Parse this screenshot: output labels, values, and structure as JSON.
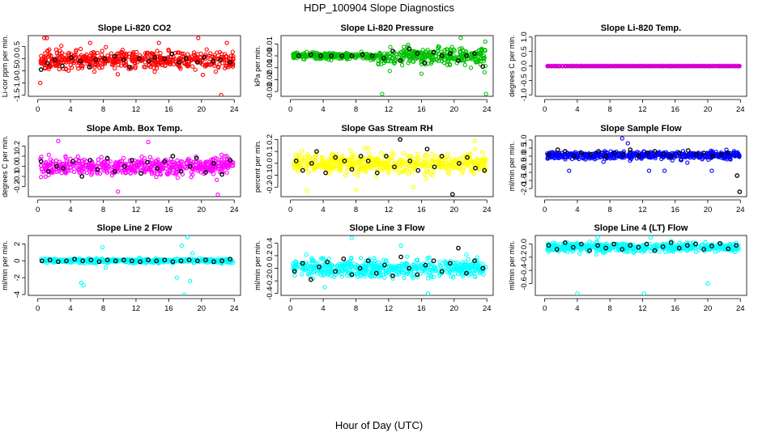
{
  "figure": {
    "title": "HDP_100904  Slope Diagnostics",
    "xlabel": "Hour of Day (UTC)"
  },
  "chart_data": [
    {
      "type": "scatter",
      "title": "Slope Li-820 CO2",
      "ylabel": "Li-cor ppm per min.",
      "color": "#ff0000",
      "xlim": [
        0,
        24
      ],
      "ylim": [
        -1.55,
        0.95
      ],
      "xticks": [
        0,
        4,
        8,
        12,
        16,
        20,
        24
      ],
      "yticks": [
        -1.5,
        -1.0,
        -0.5,
        0.0,
        0.5
      ],
      "ytick_labels": [
        "-1.5",
        "-1.0",
        "-0.5",
        "0.0",
        "0.5"
      ],
      "center": -0.05,
      "spread": 0.32,
      "black_points": [
        [
          0.4,
          -0.45
        ],
        [
          1.2,
          -0.2
        ],
        [
          2.1,
          -0.05
        ],
        [
          3.0,
          -0.3
        ],
        [
          4.1,
          0.05
        ],
        [
          5.2,
          -0.1
        ],
        [
          6.3,
          -0.35
        ],
        [
          7.1,
          -0.05
        ],
        [
          8.2,
          0.0
        ],
        [
          9.4,
          0.1
        ],
        [
          10.5,
          -0.05
        ],
        [
          11.2,
          -0.35
        ],
        [
          12.4,
          0.0
        ],
        [
          13.6,
          -0.1
        ],
        [
          14.3,
          0.05
        ],
        [
          15.5,
          0.0
        ],
        [
          16.4,
          0.2
        ],
        [
          17.3,
          -0.15
        ],
        [
          18.1,
          0.0
        ],
        [
          19.5,
          -0.15
        ],
        [
          20.3,
          0.05
        ],
        [
          21.4,
          -0.1
        ],
        [
          22.3,
          -0.05
        ],
        [
          23.5,
          -0.15
        ]
      ],
      "outliers": [
        [
          0.3,
          -1.0
        ],
        [
          0.8,
          0.85
        ],
        [
          1.1,
          0.85
        ],
        [
          19.6,
          0.85
        ],
        [
          22.4,
          -1.5
        ],
        [
          23.1,
          0.65
        ],
        [
          6.4,
          0.65
        ],
        [
          14.8,
          0.65
        ]
      ]
    },
    {
      "type": "scatter",
      "title": "Slope Li-820 Pressure",
      "ylabel": "kPa per min.",
      "color": "#00c000",
      "xlim": [
        0,
        24
      ],
      "ylim": [
        -0.034,
        0.017
      ],
      "xticks": [
        0,
        4,
        8,
        12,
        16,
        20,
        24
      ],
      "yticks": [
        -0.03,
        -0.02,
        -0.01,
        0.0,
        0.01
      ],
      "ytick_labels": [
        "-0.03",
        "-0.02",
        "-0.01",
        "0.00",
        "0.01"
      ],
      "center": 0.0,
      "spread": 0.0025,
      "spread_late": 0.007,
      "black_points": [
        [
          1.0,
          0.0
        ],
        [
          2.5,
          0.001
        ],
        [
          3.7,
          0.0
        ],
        [
          5.0,
          0.0
        ],
        [
          6.3,
          0.0
        ],
        [
          7.5,
          0.0
        ],
        [
          8.8,
          0.001
        ],
        [
          10.0,
          0.0
        ],
        [
          11.4,
          -0.002
        ],
        [
          12.5,
          0.004
        ],
        [
          13.4,
          -0.004
        ],
        [
          14.5,
          0.006
        ],
        [
          15.5,
          0.002
        ],
        [
          16.4,
          -0.006
        ],
        [
          17.5,
          0.003
        ],
        [
          18.5,
          0.0
        ],
        [
          19.5,
          0.002
        ],
        [
          20.5,
          -0.004
        ],
        [
          21.5,
          0.0
        ],
        [
          22.5,
          0.002
        ],
        [
          23.5,
          -0.009
        ]
      ],
      "outliers": [
        [
          11.2,
          -0.032
        ],
        [
          16.0,
          -0.015
        ],
        [
          20.8,
          0.015
        ],
        [
          23.8,
          0.012
        ],
        [
          23.9,
          -0.032
        ]
      ]
    },
    {
      "type": "scatter",
      "title": "Slope Li-820 Temp.",
      "ylabel": "degrees C per min.",
      "color": "#ff00ff",
      "xlim": [
        0,
        24
      ],
      "ylim": [
        -1.05,
        1.05
      ],
      "xticks": [
        0,
        4,
        8,
        12,
        16,
        20,
        24
      ],
      "yticks": [
        -1.0,
        -0.5,
        0.0,
        0.5,
        1.0
      ],
      "ytick_labels": [
        "-1.0",
        "-0.5",
        "0.0",
        "0.5",
        "1.0"
      ],
      "center": 0.0,
      "spread": 0.0,
      "overlay_color": "#800080",
      "black_points": [],
      "outliers": []
    },
    {
      "type": "scatter",
      "title": "Slope Amb. Box Temp.",
      "ylabel": "degrees C per min.",
      "color": "#ff00ff",
      "xlim": [
        0,
        24
      ],
      "ylim": [
        -0.3,
        0.3
      ],
      "xticks": [
        0,
        4,
        8,
        12,
        16,
        20,
        24
      ],
      "yticks": [
        -0.2,
        -0.1,
        0.0,
        0.1,
        0.2
      ],
      "ytick_labels": [
        "-0.2",
        "-0.1",
        "0.0",
        "0.1",
        "0.2"
      ],
      "center": 0.0,
      "spread": 0.08,
      "black_points": [
        [
          0.4,
          0.05
        ],
        [
          1.3,
          -0.05
        ],
        [
          2.3,
          0.0
        ],
        [
          3.1,
          -0.02
        ],
        [
          4.3,
          0.05
        ],
        [
          5.4,
          -0.1
        ],
        [
          6.4,
          0.06
        ],
        [
          7.3,
          -0.03
        ],
        [
          8.5,
          0.08
        ],
        [
          9.4,
          -0.05
        ],
        [
          10.6,
          0.0
        ],
        [
          11.5,
          0.06
        ],
        [
          12.6,
          -0.07
        ],
        [
          13.4,
          0.04
        ],
        [
          14.6,
          -0.02
        ],
        [
          15.5,
          0.05
        ],
        [
          16.5,
          0.1
        ],
        [
          17.5,
          -0.05
        ],
        [
          18.6,
          0.0
        ],
        [
          19.4,
          0.08
        ],
        [
          20.5,
          -0.06
        ],
        [
          21.5,
          0.03
        ],
        [
          22.5,
          -0.08
        ],
        [
          23.5,
          0.06
        ]
      ],
      "outliers": [
        [
          2.5,
          0.25
        ],
        [
          9.8,
          -0.25
        ],
        [
          13.5,
          0.24
        ],
        [
          22.0,
          -0.28
        ]
      ]
    },
    {
      "type": "scatter",
      "title": "Slope Gas Stream RH",
      "ylabel": "percent per min.",
      "color": "#ffff00",
      "xlim": [
        0,
        24
      ],
      "ylim": [
        -0.28,
        0.23
      ],
      "xticks": [
        0,
        4,
        8,
        12,
        16,
        20,
        24
      ],
      "yticks": [
        -0.2,
        -0.1,
        0.0,
        0.1,
        0.2
      ],
      "ytick_labels": [
        "-0.2",
        "-0.1",
        "0.0",
        "0.1",
        "0.2"
      ],
      "center": 0.0,
      "spread": 0.07,
      "black_points": [
        [
          0.7,
          0.02
        ],
        [
          1.5,
          -0.06
        ],
        [
          2.6,
          0.0
        ],
        [
          3.2,
          0.1
        ],
        [
          4.3,
          -0.08
        ],
        [
          5.5,
          0.05
        ],
        [
          6.6,
          0.02
        ],
        [
          7.5,
          -0.05
        ],
        [
          8.6,
          0.06
        ],
        [
          9.5,
          0.02
        ],
        [
          10.6,
          -0.08
        ],
        [
          11.7,
          0.06
        ],
        [
          12.7,
          -0.03
        ],
        [
          13.4,
          0.2
        ],
        [
          14.6,
          0.02
        ],
        [
          15.6,
          -0.06
        ],
        [
          16.7,
          0.12
        ],
        [
          17.6,
          -0.03
        ],
        [
          18.5,
          0.06
        ],
        [
          19.8,
          -0.26
        ],
        [
          20.6,
          0.0
        ],
        [
          21.6,
          0.05
        ],
        [
          22.6,
          -0.04
        ],
        [
          23.7,
          -0.06
        ]
      ],
      "outliers": [
        [
          2.0,
          -0.23
        ],
        [
          8.0,
          -0.22
        ],
        [
          15.0,
          -0.2
        ],
        [
          22.5,
          0.19
        ]
      ]
    },
    {
      "type": "scatter",
      "title": "Slope Sample Flow",
      "ylabel": "ml/min per min.",
      "color": "#0000ff",
      "xlim": [
        0,
        24
      ],
      "ylim": [
        -2.5,
        1.25
      ],
      "xticks": [
        0,
        4,
        8,
        12,
        16,
        20,
        24
      ],
      "yticks": [
        -2.0,
        -1.5,
        -1.0,
        -0.5,
        0.0,
        0.5,
        1.0
      ],
      "ytick_labels": [
        "-2.0",
        "-1.5",
        "-1.0",
        "-0.5",
        "0.0",
        "0.5",
        "1.0"
      ],
      "center": 0.05,
      "spread": 0.2,
      "black_points": [
        [
          0.5,
          0.1
        ],
        [
          1.6,
          0.4
        ],
        [
          2.5,
          0.3
        ],
        [
          3.6,
          0.0
        ],
        [
          4.5,
          0.2
        ],
        [
          5.6,
          0.1
        ],
        [
          6.6,
          0.3
        ],
        [
          7.5,
          0.0
        ],
        [
          8.6,
          0.2
        ],
        [
          9.6,
          0.1
        ],
        [
          10.5,
          0.4
        ],
        [
          11.5,
          0.0
        ],
        [
          12.6,
          0.2
        ],
        [
          13.5,
          0.3
        ],
        [
          14.6,
          0.1
        ],
        [
          15.5,
          0.0
        ],
        [
          16.5,
          0.2
        ],
        [
          17.6,
          0.35
        ],
        [
          18.6,
          0.1
        ],
        [
          19.5,
          0.2
        ],
        [
          20.6,
          0.0
        ],
        [
          21.6,
          0.1
        ],
        [
          22.5,
          0.2
        ],
        [
          23.6,
          -1.2
        ],
        [
          23.9,
          -2.2
        ]
      ],
      "outliers": [
        [
          3.0,
          -0.9
        ],
        [
          9.5,
          1.1
        ],
        [
          10.2,
          0.8
        ],
        [
          12.8,
          -0.9
        ],
        [
          14.7,
          -0.9
        ],
        [
          17.5,
          -0.4
        ],
        [
          20.5,
          -0.9
        ]
      ]
    },
    {
      "type": "scatter",
      "title": "Slope Line 2 Flow",
      "ylabel": "ml/min per min.",
      "color": "#00ffff",
      "xlim": [
        0,
        24
      ],
      "ylim": [
        -4.1,
        3.0
      ],
      "xticks": [
        0,
        4,
        8,
        12,
        16,
        20,
        24
      ],
      "yticks": [
        -4,
        -2,
        0,
        2
      ],
      "ytick_labels": [
        "-4",
        "-2",
        "0",
        "2"
      ],
      "center": 0.0,
      "spread": 0.22,
      "black_points": [
        [
          0.5,
          0.0
        ],
        [
          1.5,
          0.1
        ],
        [
          2.5,
          -0.1
        ],
        [
          3.5,
          0.0
        ],
        [
          4.5,
          0.2
        ],
        [
          5.5,
          0.0
        ],
        [
          6.5,
          0.1
        ],
        [
          7.5,
          -0.1
        ],
        [
          8.5,
          0.1
        ],
        [
          9.5,
          0.0
        ],
        [
          10.5,
          0.1
        ],
        [
          11.5,
          0.0
        ],
        [
          12.5,
          -0.1
        ],
        [
          13.5,
          0.1
        ],
        [
          14.5,
          0.0
        ],
        [
          15.5,
          0.1
        ],
        [
          16.5,
          -0.1
        ],
        [
          17.5,
          0.0
        ],
        [
          18.5,
          0.1
        ],
        [
          19.5,
          0.0
        ],
        [
          20.5,
          0.1
        ],
        [
          21.5,
          -0.1
        ],
        [
          22.5,
          0.0
        ],
        [
          23.5,
          0.2
        ]
      ],
      "outliers": [
        [
          5.3,
          -2.6
        ],
        [
          5.6,
          -2.9
        ],
        [
          7.9,
          1.6
        ],
        [
          8.3,
          -0.8
        ],
        [
          17.0,
          -2.0
        ],
        [
          17.6,
          1.8
        ],
        [
          18.3,
          2.8
        ],
        [
          18.6,
          -2.4
        ],
        [
          17.9,
          -4.0
        ],
        [
          18.9,
          0.9
        ]
      ]
    },
    {
      "type": "scatter",
      "title": "Slope Line 3 Flow",
      "ylabel": "ml/min per min.",
      "color": "#00ffff",
      "xlim": [
        0,
        24
      ],
      "ylim": [
        -0.43,
        0.52
      ],
      "xticks": [
        0,
        4,
        8,
        12,
        16,
        20,
        24
      ],
      "yticks": [
        -0.4,
        -0.2,
        0.0,
        0.2,
        0.4
      ],
      "ytick_labels": [
        "-0.4",
        "-0.2",
        "0.0",
        "0.2",
        "0.4"
      ],
      "center": 0.0,
      "spread": 0.13,
      "black_points": [
        [
          0.5,
          -0.05
        ],
        [
          1.5,
          0.08
        ],
        [
          2.5,
          -0.18
        ],
        [
          3.5,
          0.02
        ],
        [
          4.5,
          0.1
        ],
        [
          5.5,
          -0.05
        ],
        [
          6.5,
          0.15
        ],
        [
          7.5,
          -0.1
        ],
        [
          8.5,
          0.0
        ],
        [
          9.5,
          0.12
        ],
        [
          10.5,
          -0.08
        ],
        [
          11.5,
          0.05
        ],
        [
          12.5,
          -0.12
        ],
        [
          13.5,
          0.18
        ],
        [
          14.5,
          0.0
        ],
        [
          15.5,
          -0.1
        ],
        [
          16.5,
          0.05
        ],
        [
          17.5,
          0.12
        ],
        [
          18.5,
          -0.05
        ],
        [
          19.5,
          0.08
        ],
        [
          20.5,
          0.32
        ],
        [
          21.5,
          -0.08
        ],
        [
          22.5,
          0.12
        ],
        [
          23.5,
          0.0
        ]
      ],
      "outliers": [
        [
          7.5,
          0.48
        ],
        [
          16.8,
          -0.4
        ],
        [
          13.5,
          0.36
        ],
        [
          4.2,
          -0.3
        ]
      ]
    },
    {
      "type": "scatter",
      "title": "Slope Line 4 (LT) Flow",
      "ylabel": "ml/min per min.",
      "color": "#00ffff",
      "xlim": [
        0,
        24
      ],
      "ylim": [
        -0.78,
        0.13
      ],
      "xticks": [
        0,
        4,
        8,
        12,
        16,
        20,
        24
      ],
      "yticks": [
        -0.6,
        -0.4,
        -0.2,
        0.0
      ],
      "ytick_labels": [
        "-0.6",
        "-0.4",
        "-0.2",
        "0.0"
      ],
      "center": -0.05,
      "spread": 0.06,
      "black_points": [
        [
          0.5,
          -0.02
        ],
        [
          1.5,
          -0.08
        ],
        [
          2.5,
          0.02
        ],
        [
          3.5,
          -0.05
        ],
        [
          4.5,
          0.0
        ],
        [
          5.5,
          -0.1
        ],
        [
          6.5,
          -0.02
        ],
        [
          7.5,
          -0.06
        ],
        [
          8.5,
          0.0
        ],
        [
          9.5,
          -0.08
        ],
        [
          10.5,
          -0.02
        ],
        [
          11.5,
          -0.05
        ],
        [
          12.5,
          0.0
        ],
        [
          13.5,
          -0.1
        ],
        [
          14.5,
          -0.04
        ],
        [
          15.5,
          0.02
        ],
        [
          16.5,
          -0.06
        ],
        [
          17.5,
          -0.02
        ],
        [
          18.5,
          0.0
        ],
        [
          19.5,
          -0.08
        ],
        [
          20.5,
          -0.03
        ],
        [
          21.5,
          0.01
        ],
        [
          22.5,
          -0.07
        ],
        [
          23.5,
          -0.02
        ]
      ],
      "outliers": [
        [
          4.0,
          -0.75
        ],
        [
          12.2,
          -0.75
        ],
        [
          20.0,
          -0.6
        ],
        [
          6.5,
          0.1
        ],
        [
          13.0,
          0.1
        ]
      ]
    }
  ]
}
